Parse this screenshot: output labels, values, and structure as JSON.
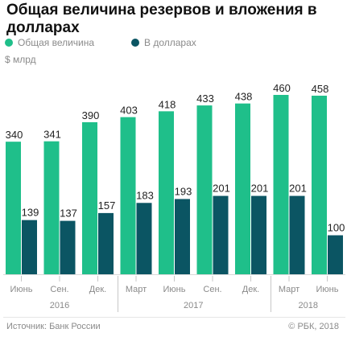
{
  "title": "Общая величина резервов и вложения в долларах",
  "legend": [
    {
      "label": "Общая величина",
      "color": "#1fbf8a"
    },
    {
      "label": "В долларах",
      "color": "#0b5563"
    }
  ],
  "unit": "$ млрд",
  "source": "Источник: Банк России",
  "copyright": "© РБК, 2018",
  "chart_data": {
    "type": "bar",
    "title": "Общая величина резервов и вложения в долларах",
    "ylabel": "$ млрд",
    "categories": [
      "Июнь",
      "Сен.",
      "Дек.",
      "Март",
      "Июнь",
      "Сен.",
      "Дек.",
      "Март",
      "Июнь"
    ],
    "years": [
      {
        "label": "2016",
        "from": 0,
        "to": 2
      },
      {
        "label": "2017",
        "from": 3,
        "to": 6
      },
      {
        "label": "2018",
        "from": 7,
        "to": 8
      }
    ],
    "series": [
      {
        "name": "Общая величина",
        "color": "#1fbf8a",
        "values": [
          340,
          341,
          390,
          403,
          418,
          433,
          438,
          460,
          458
        ]
      },
      {
        "name": "В долларах",
        "color": "#0b5563",
        "values": [
          139,
          137,
          157,
          183,
          193,
          201,
          201,
          201,
          100
        ]
      }
    ],
    "ylim": [
      0,
      460
    ],
    "grid": false,
    "legend_position": "top-left"
  }
}
